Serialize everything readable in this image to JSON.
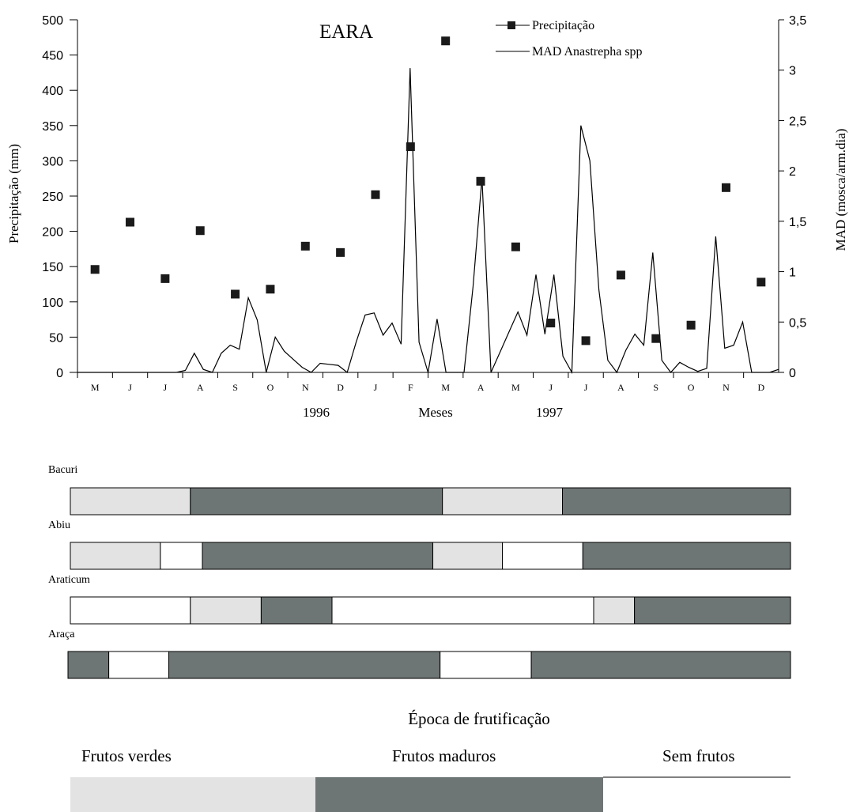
{
  "chart_data": {
    "type": "line",
    "title": "EARA",
    "xlabel": "Meses",
    "year_labels": [
      "1996",
      "1997"
    ],
    "ylabel": "Precipitação (mm)",
    "y2label": "MAD (mosca/arm.dia)",
    "ylim": [
      0,
      500
    ],
    "y2lim": [
      0,
      3.5
    ],
    "y_ticks": [
      "0",
      "50",
      "100",
      "150",
      "200",
      "250",
      "300",
      "350",
      "400",
      "450",
      "500"
    ],
    "y2_ticks": [
      "0",
      "0,5",
      "1",
      "1,5",
      "2",
      "2,5",
      "3",
      "3,5"
    ],
    "months": [
      "M",
      "J",
      "J",
      "A",
      "S",
      "O",
      "N",
      "D",
      "J",
      "F",
      "M",
      "A",
      "M",
      "J",
      "J",
      "A",
      "S",
      "O",
      "N",
      "D"
    ],
    "legend": [
      "Precipitação",
      "MAD Anastrepha spp"
    ],
    "series": [
      {
        "name": "Precipitação",
        "axis": "left",
        "style": "markers",
        "values": [
          146,
          213,
          133,
          201,
          111,
          118,
          179,
          170,
          252,
          320,
          470,
          271,
          178,
          70,
          45,
          138,
          48,
          67,
          262,
          128
        ]
      },
      {
        "name": "MAD Anastrepha spp",
        "axis": "right",
        "style": "line",
        "values": [
          0,
          0,
          0,
          0,
          0,
          0,
          0,
          0,
          0,
          0,
          0,
          0,
          0.02,
          0.19,
          0.03,
          0,
          0.19,
          0.27,
          0.23,
          0.74,
          0.52,
          0,
          0.35,
          0.21,
          0.13,
          0.05,
          0,
          0.09,
          0.08,
          0.07,
          0,
          0.3,
          0.57,
          0.59,
          0.37,
          0.49,
          0.28,
          3.02,
          0.3,
          0,
          0.53,
          0,
          0,
          0,
          0.85,
          1.93,
          0,
          0.2,
          0.4,
          0.6,
          0.37,
          0.97,
          0.38,
          0.97,
          0.16,
          0,
          2.45,
          2.1,
          0.82,
          0.12,
          0,
          0.22,
          0.38,
          0.27,
          1.19,
          0.12,
          0,
          0.1,
          0.05,
          0.01,
          0.04,
          1.35,
          0.24,
          0.27,
          0.5,
          0,
          0,
          0,
          0.03
        ]
      }
    ]
  },
  "fruiting": {
    "crops": [
      {
        "name": "Bacuri",
        "segments": [
          [
            "verde",
            1.0
          ],
          [
            "maduro",
            2.1
          ],
          [
            "verde",
            1.0
          ],
          [
            "maduro",
            0.9
          ]
        ]
      },
      {
        "name": "Abiu",
        "segments": [
          [
            "verde",
            0.75
          ],
          [
            "sem",
            0.35
          ],
          [
            "maduro",
            1.92
          ],
          [
            "verde",
            0.58
          ],
          [
            "sem",
            0.67
          ],
          [
            "maduro",
            0.73
          ]
        ]
      },
      {
        "name": "Araticum",
        "segments": [
          [
            "sem",
            1.0
          ],
          [
            "verde",
            0.59
          ],
          [
            "maduro",
            0.59
          ],
          [
            "sem",
            2.18
          ],
          [
            "verde",
            0.34
          ],
          [
            "maduro",
            0.3
          ]
        ]
      },
      {
        "name": "Araça",
        "segments": [
          [
            "maduro",
            0.34
          ],
          [
            "sem",
            0.5
          ],
          [
            "maduro",
            2.26
          ],
          [
            "sem",
            0.76
          ],
          [
            "maduro",
            1.14
          ]
        ]
      }
    ],
    "legend_title": "Época de frutificação",
    "legend_items": [
      {
        "key": "verde",
        "label": "Frutos verdes"
      },
      {
        "key": "maduro",
        "label": "Frutos  maduros"
      },
      {
        "key": "sem",
        "label": "Sem frutos"
      }
    ],
    "colors": {
      "verde": "#e3e3e3",
      "maduro": "#6e7575",
      "sem": "#ffffff"
    }
  }
}
